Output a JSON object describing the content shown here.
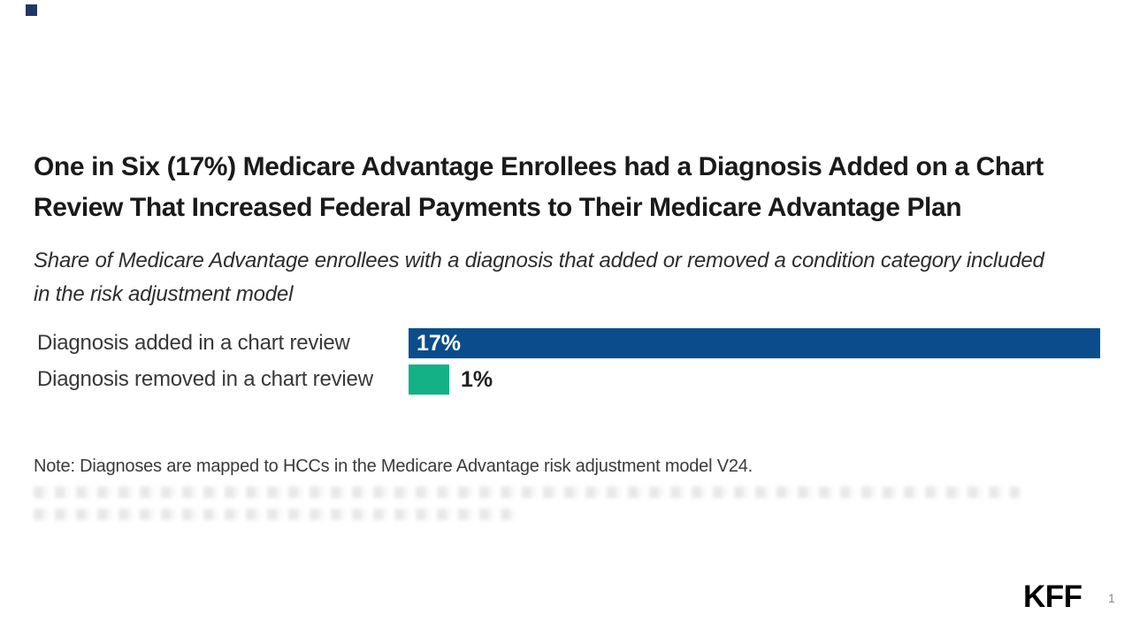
{
  "slide": {
    "title_line1": "One in Six (17%) Medicare Advantage Enrollees had a Diagnosis Added on a Chart",
    "title_line2": "Review That Increased Federal Payments to Their Medicare Advantage Plan",
    "subtitle_line1": "Share of Medicare Advantage enrollees with a diagnosis that added or removed a condition category included",
    "subtitle_line2": "in the risk adjustment model",
    "note": "Note: Diagnoses are mapped to HCCs in the Medicare Advantage risk adjustment model V24.",
    "logo_text": "KFF",
    "page_number": "1"
  },
  "colors": {
    "bar_blue": "#0b4d8c",
    "bar_green": "#12b286",
    "title_text": "#1a1a1a",
    "corner_square": "#1f3864"
  },
  "chart_data": {
    "type": "bar",
    "orientation": "horizontal",
    "title": "One in Six (17%) Medicare Advantage Enrollees had a Diagnosis Added on a Chart Review That Increased Federal Payments to Their Medicare Advantage Plan",
    "subtitle": "Share of Medicare Advantage enrollees with a diagnosis that added or removed a condition category included in the risk adjustment model",
    "categories": [
      "Diagnosis added in a chart review",
      "Diagnosis removed in a chart review"
    ],
    "values": [
      17,
      1
    ],
    "value_labels": [
      "17%",
      "1%"
    ],
    "bar_colors": [
      "#0b4d8c",
      "#12b286"
    ],
    "value_label_positions": [
      "inside-left",
      "outside-right"
    ],
    "xlim": [
      0,
      17
    ],
    "grid": false,
    "legend": "none",
    "note": "Note: Diagnoses are mapped to HCCs in the Medicare Advantage risk adjustment model V24."
  }
}
